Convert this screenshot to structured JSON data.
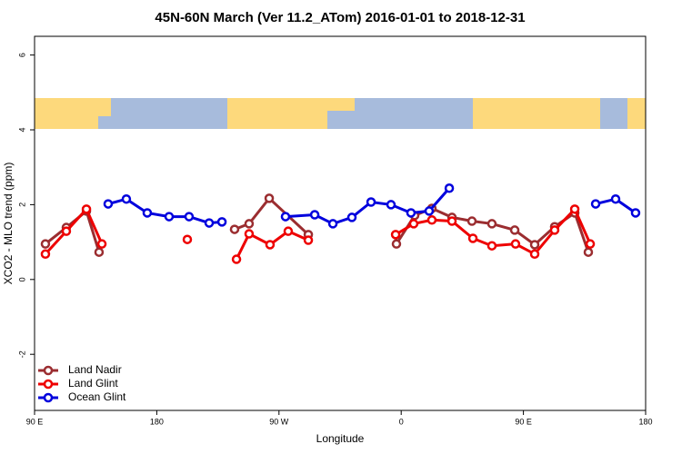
{
  "chart_data": {
    "type": "line",
    "title": "45N-60N March (Ver 11.2_ATom)   2016-01-01 to 2018-12-31",
    "x_label": "Longitude",
    "y_label": "XCO2 - MLO trend (ppm)",
    "xlim": [
      90,
      540
    ],
    "ylim": [
      -3.5,
      6.5
    ],
    "xticks": [
      {
        "value": 90,
        "label": "90 E"
      },
      180,
      {
        "value": 270,
        "label": "90 W"
      },
      {
        "value": 360,
        "label": "0"
      },
      {
        "value": 450,
        "label": "90 E"
      },
      {
        "value": 540,
        "label": "180"
      }
    ],
    "yticks": [
      -2,
      0,
      2,
      4,
      6
    ],
    "legend": "bottom-left",
    "series": [
      {
        "name": "Land Nadir",
        "color": "#9b2d30",
        "x": [
          98,
          113.4,
          128.2,
          137.5,
          null,
          237.3,
          248,
          262.8,
          291.6,
          null,
          356.5,
          369.9,
          382.6,
          397.4,
          412.1,
          426.8,
          443.6,
          458.3,
          473,
          487.8,
          497.8
        ],
        "values": [
          0.95,
          1.39,
          1.83,
          0.73,
          null,
          1.34,
          1.49,
          2.17,
          1.2,
          null,
          0.95,
          1.71,
          1.9,
          1.66,
          1.56,
          1.49,
          1.32,
          0.93,
          1.41,
          1.78,
          0.73
        ]
      },
      {
        "name": "Land Glint",
        "color": "#ee0000",
        "x": [
          98,
          113.4,
          128.2,
          139.6,
          null,
          202.5,
          null,
          238.7,
          248,
          263.4,
          276.8,
          291.6,
          null,
          355.9,
          369.2,
          382.6,
          397.4,
          412.8,
          426.8,
          444.2,
          458.3,
          473,
          487.8,
          499.2
        ],
        "values": [
          0.68,
          1.29,
          1.88,
          0.95,
          null,
          1.07,
          null,
          0.54,
          1.22,
          0.93,
          1.29,
          1.05,
          null,
          1.2,
          1.49,
          1.59,
          1.56,
          1.1,
          0.9,
          0.95,
          0.68,
          1.32,
          1.88,
          0.95
        ]
      },
      {
        "name": "Ocean Glint",
        "color": "#0000dd",
        "x": [
          144.2,
          157.6,
          173,
          189.1,
          203.8,
          218.6,
          228,
          null,
          274.8,
          296.3,
          309.7,
          323.7,
          337.8,
          352.5,
          367.2,
          380.6,
          395.4,
          null,
          503.2,
          517.9,
          532.6
        ],
        "values": [
          2.02,
          2.15,
          1.78,
          1.68,
          1.68,
          1.51,
          1.54,
          null,
          1.68,
          1.73,
          1.49,
          1.66,
          2.07,
          2.0,
          1.78,
          1.83,
          2.44,
          null,
          2.02,
          2.15,
          1.78
        ]
      }
    ]
  }
}
